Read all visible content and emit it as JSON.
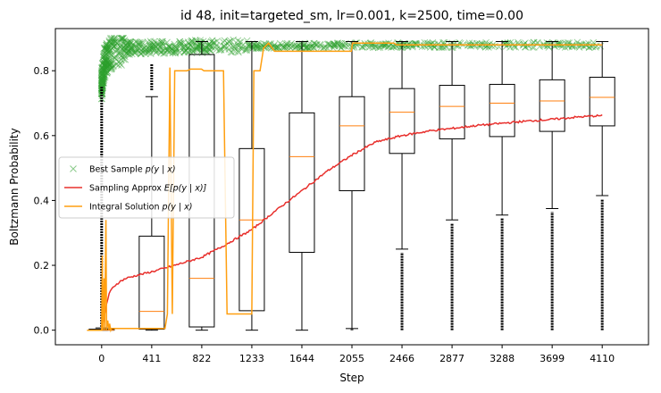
{
  "chart_data": {
    "type": "box+line+scatter",
    "title": "id 48, init=targeted_sm, lr=0.001, k=2500, time=0.00",
    "xlabel": "Step",
    "ylabel": "Boltzmann Probability",
    "xlim": [
      -380,
      4490
    ],
    "ylim": [
      -0.045,
      0.93
    ],
    "x_ticks": [
      0,
      411,
      822,
      1233,
      1644,
      2055,
      2466,
      2877,
      3288,
      3699,
      4110
    ],
    "y_ticks": [
      0.0,
      0.2,
      0.4,
      0.6,
      0.8
    ],
    "y_tick_labels": [
      "0.0",
      "0.2",
      "0.4",
      "0.6",
      "0.8"
    ],
    "grid": false,
    "legend_position": "center-left",
    "colors": {
      "best_sample": "#2ca02c",
      "sampling": "#e8302d",
      "integral": "#ff9f10",
      "box": "#000000",
      "median": "#ff7f0e"
    },
    "boxes": [
      {
        "x": 0,
        "q1": 0.0,
        "median": 0.0,
        "q3": 0.003,
        "whisker_low": 0.0,
        "whisker_high": 0.007,
        "outliers_from": 0.01,
        "outliers_to": 0.75
      },
      {
        "x": 411,
        "q1": 0.003,
        "median": 0.058,
        "q3": 0.29,
        "whisker_low": 0.0,
        "whisker_high": 0.72,
        "outliers_from": 0.74,
        "outliers_to": 0.82
      },
      {
        "x": 822,
        "q1": 0.01,
        "median": 0.16,
        "q3": 0.85,
        "whisker_low": 0.0,
        "whisker_high": 0.89,
        "outliers_from": null,
        "outliers_to": null
      },
      {
        "x": 1233,
        "q1": 0.06,
        "median": 0.34,
        "q3": 0.56,
        "whisker_low": 0.0,
        "whisker_high": 0.89,
        "outliers_from": null,
        "outliers_to": null
      },
      {
        "x": 1644,
        "q1": 0.24,
        "median": 0.535,
        "q3": 0.67,
        "whisker_low": 0.0,
        "whisker_high": 0.89,
        "outliers_from": null,
        "outliers_to": null
      },
      {
        "x": 2055,
        "q1": 0.43,
        "median": 0.63,
        "q3": 0.72,
        "whisker_low": 0.005,
        "whisker_high": 0.89,
        "outliers_from": 0.0,
        "outliers_to": 0.003
      },
      {
        "x": 2466,
        "q1": 0.545,
        "median": 0.672,
        "q3": 0.745,
        "whisker_low": 0.25,
        "whisker_high": 0.89,
        "outliers_from": 0.0,
        "outliers_to": 0.24
      },
      {
        "x": 2877,
        "q1": 0.59,
        "median": 0.69,
        "q3": 0.755,
        "whisker_low": 0.34,
        "whisker_high": 0.89,
        "outliers_from": 0.0,
        "outliers_to": 0.33
      },
      {
        "x": 3288,
        "q1": 0.597,
        "median": 0.7,
        "q3": 0.758,
        "whisker_low": 0.355,
        "whisker_high": 0.89,
        "outliers_from": 0.0,
        "outliers_to": 0.345
      },
      {
        "x": 3699,
        "q1": 0.613,
        "median": 0.707,
        "q3": 0.772,
        "whisker_low": 0.375,
        "whisker_high": 0.89,
        "outliers_from": 0.0,
        "outliers_to": 0.365
      },
      {
        "x": 4110,
        "q1": 0.63,
        "median": 0.718,
        "q3": 0.78,
        "whisker_low": 0.415,
        "whisker_high": 0.89,
        "outliers_from": 0.0,
        "outliers_to": 0.405
      }
    ],
    "series": [
      {
        "name": "Best Sample $p(y \\mid x)$",
        "label_prefix": "Best Sample ",
        "label_math": "p(y | x)",
        "style": "scatter-x",
        "x": [
          0,
          10,
          20,
          40,
          60,
          80,
          100,
          150,
          200,
          300,
          411,
          600,
          822,
          1233,
          1644,
          2055,
          2466,
          2877,
          3288,
          3699,
          4110
        ],
        "values": [
          0.76,
          0.79,
          0.82,
          0.84,
          0.85,
          0.855,
          0.86,
          0.865,
          0.87,
          0.87,
          0.872,
          0.873,
          0.875,
          0.876,
          0.877,
          0.878,
          0.879,
          0.879,
          0.88,
          0.88,
          0.88
        ]
      },
      {
        "name": "Sampling Approx $E[p(y \\mid x)]$",
        "label_prefix": "Sampling Approx ",
        "label_math": "E[p(y | x)]",
        "style": "line",
        "x": [
          0,
          20,
          40,
          60,
          80,
          100,
          150,
          200,
          300,
          411,
          600,
          822,
          1000,
          1233,
          1400,
          1644,
          1850,
          2055,
          2250,
          2466,
          2700,
          2877,
          3100,
          3288,
          3500,
          3699,
          3900,
          4110
        ],
        "values": [
          0.0,
          0.04,
          0.08,
          0.11,
          0.125,
          0.135,
          0.15,
          0.16,
          0.17,
          0.18,
          0.2,
          0.225,
          0.26,
          0.31,
          0.36,
          0.43,
          0.49,
          0.54,
          0.58,
          0.6,
          0.615,
          0.622,
          0.632,
          0.638,
          0.645,
          0.65,
          0.657,
          0.662
        ]
      },
      {
        "name": "Integral Solution $p(y \\mid x)$",
        "label_prefix": "Integral Solution ",
        "label_math": "p(y | x)",
        "style": "step",
        "x": [
          -120,
          0,
          5,
          10,
          20,
          25,
          35,
          40,
          50,
          60,
          65,
          75,
          80,
          100,
          520,
          540,
          560,
          580,
          600,
          700,
          730,
          820,
          840,
          1000,
          1030,
          1233,
          1250,
          1300,
          1330,
          1370,
          1420,
          2050,
          2060,
          2400,
          2420,
          4110
        ],
        "values": [
          0.0,
          0.0,
          0.23,
          0.0,
          0.16,
          0.0,
          0.34,
          0.0,
          0.03,
          0.0,
          0.02,
          0.0,
          0.005,
          0.005,
          0.005,
          0.05,
          0.81,
          0.05,
          0.8,
          0.8,
          0.805,
          0.805,
          0.8,
          0.8,
          0.05,
          0.05,
          0.8,
          0.8,
          0.87,
          0.885,
          0.86,
          0.86,
          0.885,
          0.885,
          0.88,
          0.88
        ]
      }
    ]
  }
}
